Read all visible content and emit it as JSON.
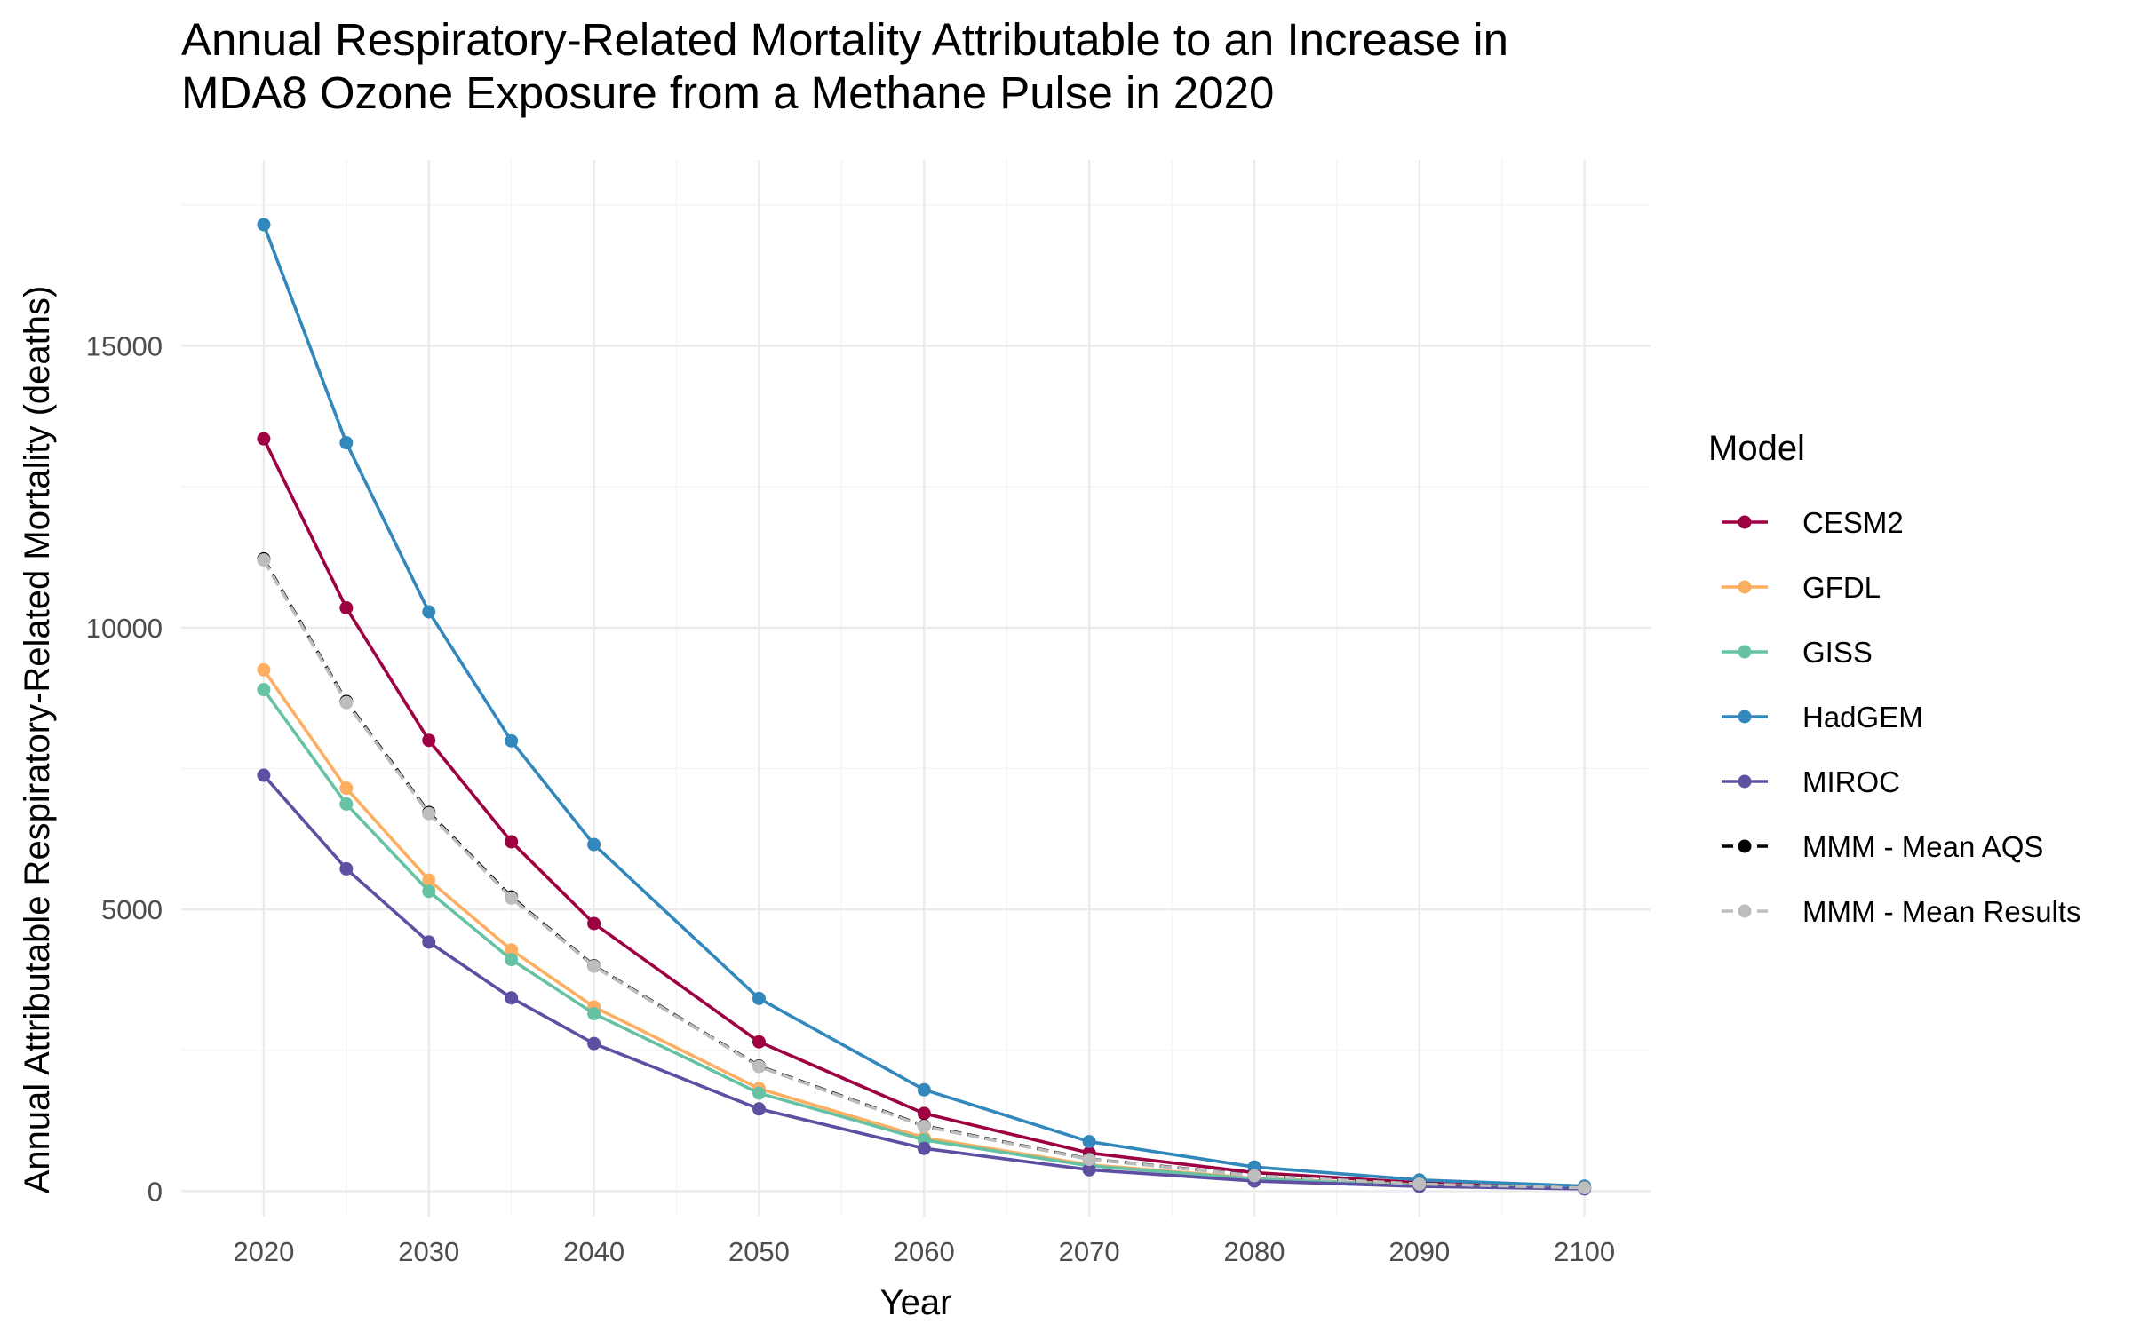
{
  "chart_data": {
    "type": "line",
    "title_lines": [
      "Annual Respiratory-Related Mortality Attributable to an Increase in",
      "MDA8 Ozone Exposure from a Methane Pulse in 2020"
    ],
    "xlabel": "Year",
    "ylabel": "Annual Attributable Respiratory-Related Mortality (deaths)",
    "x": [
      2020,
      2025,
      2030,
      2035,
      2040,
      2050,
      2060,
      2070,
      2080,
      2090,
      2100
    ],
    "x_ticks": [
      "2020",
      "2030",
      "2040",
      "2050",
      "2060",
      "2070",
      "2080",
      "2090",
      "2100"
    ],
    "y_ticks": [
      "0",
      "5000",
      "10000",
      "15000"
    ],
    "xlim": [
      2015,
      2104
    ],
    "ylim": [
      -450,
      18300
    ],
    "grid": true,
    "legend": {
      "title": "Model",
      "position": "right"
    },
    "series": [
      {
        "name": "CESM2",
        "color": "#9e0142",
        "dashed": false,
        "values": [
          13350,
          10350,
          8000,
          6200,
          4750,
          2650,
          1380,
          680,
          330,
          150,
          70
        ]
      },
      {
        "name": "GFDL",
        "color": "#fdae61",
        "dashed": false,
        "values": [
          9250,
          7150,
          5520,
          4280,
          3270,
          1820,
          950,
          470,
          230,
          110,
          50
        ]
      },
      {
        "name": "GISS",
        "color": "#66c2a5",
        "dashed": false,
        "values": [
          8900,
          6870,
          5320,
          4110,
          3150,
          1740,
          910,
          450,
          220,
          105,
          48
        ]
      },
      {
        "name": "HadGEM",
        "color": "#3288bd",
        "dashed": false,
        "values": [
          17150,
          13280,
          10280,
          7990,
          6150,
          3420,
          1800,
          880,
          430,
          200,
          90
        ]
      },
      {
        "name": "MIROC",
        "color": "#5e4fa2",
        "dashed": false,
        "values": [
          7380,
          5720,
          4420,
          3430,
          2620,
          1460,
          760,
          380,
          180,
          85,
          40
        ]
      },
      {
        "name": "MMM - Mean AQS",
        "color": "#000000",
        "dashed": true,
        "values": [
          11220,
          8690,
          6720,
          5220,
          4000,
          2220,
          1160,
          570,
          280,
          130,
          60
        ]
      },
      {
        "name": "MMM - Mean Results",
        "color": "#bdbdbd",
        "dashed": true,
        "values": [
          11200,
          8670,
          6700,
          5200,
          3990,
          2210,
          1150,
          565,
          275,
          128,
          58
        ]
      }
    ]
  }
}
